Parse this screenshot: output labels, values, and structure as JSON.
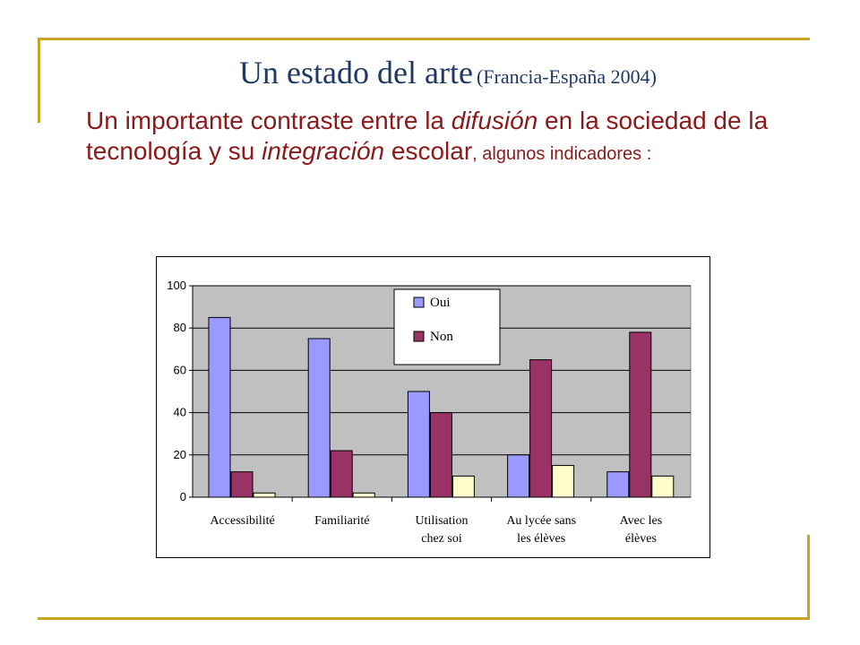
{
  "slide": {
    "title": "Un estado del arte",
    "title_suffix": "(Francia-España 2004)",
    "subtitle": {
      "part1": "Un importante contraste entre la ",
      "em1": "difusión",
      "part2": " en la sociedad de la tecnología y su ",
      "em2": "integración",
      "part3": " escolar",
      "part4": ", algunos indicadores :"
    }
  },
  "colors": {
    "frame": "#c9a227",
    "title": "#1f3864",
    "subtitle": "#8b1a1a",
    "plot_bg": "#c0c0c0",
    "series": [
      "#9999ff",
      "#993366",
      "#ffffcc"
    ]
  },
  "chart_data": {
    "type": "bar",
    "title": "",
    "xlabel": "",
    "ylabel": "",
    "ylim": [
      0,
      100
    ],
    "yticks": [
      0,
      20,
      40,
      60,
      80,
      100
    ],
    "grid": true,
    "legend_position": "top-center",
    "categories": [
      [
        "Accessibilité"
      ],
      [
        "Familiarité"
      ],
      [
        "Utilisation",
        "chez soi"
      ],
      [
        "Au lycée sans",
        "les élèves"
      ],
      [
        "Avec les",
        "élèves"
      ]
    ],
    "series": [
      {
        "name": "Oui",
        "values": [
          85,
          75,
          50,
          20,
          12
        ]
      },
      {
        "name": "Non",
        "values": [
          12,
          22,
          40,
          65,
          78
        ]
      },
      {
        "values": [
          2,
          2,
          10,
          15,
          10
        ]
      }
    ]
  }
}
